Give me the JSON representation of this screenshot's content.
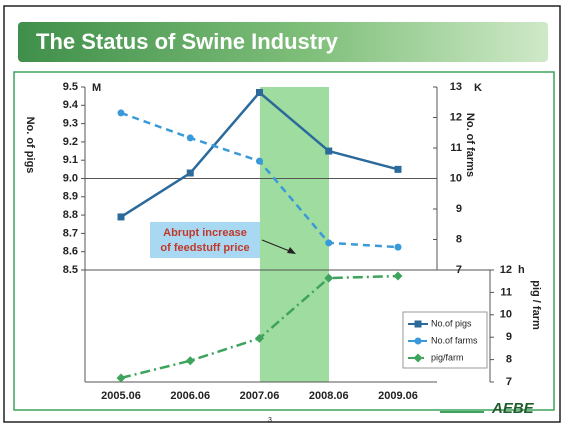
{
  "chart_data": {
    "type": "line",
    "title": "The Status of Swine Industry",
    "categories": [
      "2005.06",
      "2006.06",
      "2007.06",
      "2008.06",
      "2009.06"
    ],
    "series": [
      {
        "name": "No.of pigs",
        "color": "#2b6a9b",
        "axis": "y",
        "marker": "square",
        "dash": "solid",
        "values": [
          8.79,
          9.03,
          9.47,
          9.15,
          9.05
        ]
      },
      {
        "name": "No.of farms",
        "color": "#3a9ad9",
        "axis": "y2",
        "marker": "circle",
        "dash": "dash",
        "values": [
          12.15,
          11.33,
          10.57,
          7.89,
          7.75
        ]
      },
      {
        "name": "pig/farm",
        "color": "#3ea35c",
        "axis": "y3",
        "marker": "diamond",
        "dash": "dashdot",
        "values": [
          7.18,
          7.95,
          8.95,
          11.64,
          11.73
        ]
      }
    ],
    "y_label": "No. of pigs",
    "y_unit": "M",
    "ylim": [
      8.5,
      9.5
    ],
    "yticks": [
      8.5,
      8.6,
      8.7,
      8.8,
      8.9,
      {
        "value": 9,
        "label": "9.0"
      },
      9.1,
      9.2,
      9.3,
      9.4,
      9.5
    ],
    "y2_label": "No. of farms",
    "y2_unit": "K",
    "y2lim": [
      7,
      13
    ],
    "y2ticks": [
      7,
      8,
      9,
      10,
      11,
      12,
      13
    ],
    "y3_label": "pig / farm",
    "y3_unit": "h",
    "y3lim": [
      7,
      12
    ],
    "y3ticks": [
      7,
      8,
      9,
      10,
      11,
      12
    ],
    "annotation": [
      "Abrupt increase",
      "of feedstuff price"
    ],
    "footer": "AEBE",
    "page_number": "3"
  }
}
